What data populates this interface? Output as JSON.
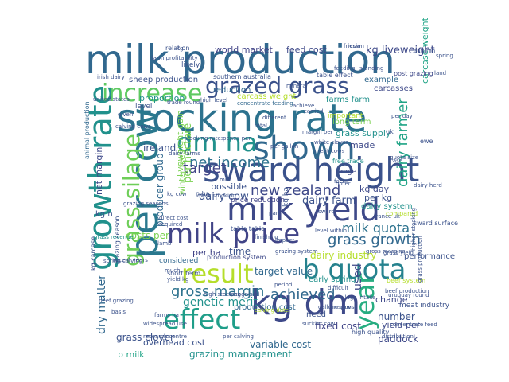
{
  "words": [
    {
      "text": "milk production",
      "color": "#31688e"
    },
    {
      "text": "stocking rate",
      "color": "#2c728e"
    },
    {
      "text": "sward height",
      "color": "#3b528b"
    },
    {
      "text": "milk yield",
      "color": "#3e4989"
    },
    {
      "text": "growth rate",
      "color": "#21918c"
    },
    {
      "text": "per cow",
      "color": "#2a788e"
    },
    {
      "text": "grazed grass",
      "color": "#3b528b"
    },
    {
      "text": "shown",
      "color": "#31688e"
    },
    {
      "text": "dm ha",
      "color": "#21918c"
    },
    {
      "text": "result",
      "color": "#b5de2b"
    },
    {
      "text": "milk price",
      "color": "#414487"
    },
    {
      "text": "kg dm",
      "color": "#3e4989"
    },
    {
      "text": "grass silage",
      "color": "#6ece58"
    },
    {
      "text": "increase",
      "color": "#5ec962"
    },
    {
      "text": "b quota",
      "color": "#26828e"
    },
    {
      "text": "effect",
      "color": "#1f9e89"
    },
    {
      "text": "year",
      "color": "#27ad81"
    },
    {
      "text": "net income",
      "color": "#2c728e"
    },
    {
      "text": "new zealand",
      "color": "#3e4989"
    },
    {
      "text": "grass growth",
      "color": "#31688e"
    },
    {
      "text": "gross margin",
      "color": "#2c728e"
    },
    {
      "text": "achieved",
      "color": "#31688e"
    },
    {
      "text": "milk quota",
      "color": "#2c728e"
    },
    {
      "text": "dairy farmer",
      "color": "#20a486"
    },
    {
      "text": "target",
      "color": "#414487"
    },
    {
      "text": "ireland",
      "color": "#3b528b"
    },
    {
      "text": "genetic merit",
      "color": "#21918c"
    },
    {
      "text": "dry matter",
      "color": "#31688e"
    },
    {
      "text": "kg liveweight",
      "color": "#3e4989"
    },
    {
      "text": "dairy cow",
      "color": "#3b528b"
    },
    {
      "text": "dairy farm",
      "color": "#3b528b"
    },
    {
      "text": "dairy industry",
      "color": "#b5de2b"
    },
    {
      "text": "used",
      "color": "#3e4989"
    },
    {
      "text": "per hectare",
      "color": "#7ad151"
    },
    {
      "text": "grass clover",
      "color": "#3b528b"
    },
    {
      "text": "grazing management",
      "color": "#21918c"
    },
    {
      "text": "variable cost",
      "color": "#31688e"
    },
    {
      "text": "fixed cost",
      "color": "#414487"
    },
    {
      "text": "paddock",
      "color": "#3e4989"
    },
    {
      "text": "number",
      "color": "#3b528b"
    },
    {
      "text": "overhead cost",
      "color": "#3b528b"
    },
    {
      "text": "b milk",
      "color": "#20a486"
    },
    {
      "text": "feed cost",
      "color": "#3e4989"
    },
    {
      "text": "world market",
      "color": "#414487"
    },
    {
      "text": "sheep production",
      "color": "#3b528b"
    },
    {
      "text": "proportion",
      "color": "#21918c"
    },
    {
      "text": "level",
      "color": "#3b528b"
    },
    {
      "text": "reduction",
      "color": "#31688e"
    },
    {
      "text": "carcass weight",
      "color": "#b5de2b"
    },
    {
      "text": "farms farm",
      "color": "#21918c"
    },
    {
      "text": "example",
      "color": "#31688e"
    },
    {
      "text": "carcasses",
      "color": "#3e4989"
    },
    {
      "text": "carcase weight",
      "color": "#20a486"
    },
    {
      "text": "post grazing",
      "color": "#3e4989"
    },
    {
      "text": "table effect",
      "color": "#3b528b"
    },
    {
      "text": "southern australia",
      "color": "#3b528b"
    },
    {
      "text": "concentrate feeding",
      "color": "#31688e"
    },
    {
      "text": "long term",
      "color": "#7ad151"
    },
    {
      "text": "grass supply",
      "color": "#21918c"
    },
    {
      "text": "made",
      "color": "#3e4989"
    },
    {
      "text": "possible",
      "color": "#3b528b"
    },
    {
      "text": "net margin",
      "color": "#3e4989"
    },
    {
      "text": "costs per",
      "color": "#7ad151"
    },
    {
      "text": "per ha",
      "color": "#414487"
    },
    {
      "text": "time",
      "color": "#3b528b"
    },
    {
      "text": "target value",
      "color": "#31688e"
    },
    {
      "text": "kg day",
      "color": "#3e4989"
    },
    {
      "text": "per kg",
      "color": "#3b528b"
    },
    {
      "text": "dairy system",
      "color": "#21918c"
    },
    {
      "text": "early spring",
      "color": "#21918c"
    },
    {
      "text": "change",
      "color": "#3e4989"
    },
    {
      "text": "yield per",
      "color": "#3e4989"
    },
    {
      "text": "beef system",
      "color": "#b5de2b"
    },
    {
      "text": "meat industry",
      "color": "#3b528b"
    },
    {
      "text": "production cost",
      "color": "#31688e"
    },
    {
      "text": "need",
      "color": "#3b528b"
    },
    {
      "text": "producer group",
      "color": "#31688e"
    },
    {
      "text": "liveweight gain",
      "color": "#7ad151"
    },
    {
      "text": "animal production",
      "color": "#31688e"
    },
    {
      "text": "kg n",
      "color": "#3b528b"
    },
    {
      "text": "relation",
      "color": "#3b528b"
    },
    {
      "text": "likely",
      "color": "#3b528b"
    },
    {
      "text": "irish dairy",
      "color": "#3b528b"
    },
    {
      "text": "important",
      "color": "#b5de2b"
    },
    {
      "text": "range",
      "color": "#3e4989"
    },
    {
      "text": "free trade",
      "color": "#21918c"
    },
    {
      "text": "compared",
      "color": "#b5de2b"
    },
    {
      "text": "sward surface",
      "color": "#3b528b"
    },
    {
      "text": "considered",
      "color": "#31688e"
    },
    {
      "text": "production system",
      "color": "#3e4989"
    },
    {
      "text": "performance",
      "color": "#3b528b"
    },
    {
      "text": "high quality",
      "color": "#3b528b"
    },
    {
      "text": "distribution",
      "color": "#3b528b"
    },
    {
      "text": "research centre",
      "color": "#3b528b"
    },
    {
      "text": "grazing season",
      "color": "#3b528b"
    },
    {
      "text": "grass revenue",
      "color": "#21918c"
    },
    {
      "text": "recent years",
      "color": "#3b528b"
    },
    {
      "text": "united states",
      "color": "#3b528b"
    },
    {
      "text": "white clover",
      "color": "#3b528b"
    },
    {
      "text": "per calving",
      "color": "#3b528b"
    },
    {
      "text": "winter feed",
      "color": "#7ad151"
    },
    {
      "text": "price reduction",
      "color": "#414487"
    },
    {
      "text": "high level",
      "color": "#3b528b"
    },
    {
      "text": "trade round",
      "color": "#3b528b"
    },
    {
      "text": "quota size",
      "color": "#3b528b"
    },
    {
      "text": "dairy herd",
      "color": "#3b528b"
    },
    {
      "text": "kg carcase",
      "color": "#3b528b"
    },
    {
      "text": "short term",
      "color": "#3b528b"
    },
    {
      "text": "calving date",
      "color": "#b5de2b"
    },
    {
      "text": "silage intake",
      "color": "#3b528b"
    },
    {
      "text": "beef production",
      "color": "#3b528b"
    },
    {
      "text": "concentrate feed",
      "color": "#3b528b"
    },
    {
      "text": "higher stocking",
      "color": "#3b528b"
    },
    {
      "text": "spring calving",
      "color": "#3b528b"
    },
    {
      "text": "france uk",
      "color": "#3b528b"
    },
    {
      "text": "kg cow",
      "color": "#3b528b"
    },
    {
      "text": "direct cost",
      "color": "#3b528b"
    },
    {
      "text": "required",
      "color": "#3b528b"
    },
    {
      "text": "pence per",
      "color": "#3b528b"
    },
    {
      "text": "per gallon",
      "color": "#3b528b"
    },
    {
      "text": "gallons cow",
      "color": "#3b528b"
    },
    {
      "text": "period",
      "color": "#3b528b"
    },
    {
      "text": "response",
      "color": "#3b528b"
    },
    {
      "text": "impact",
      "color": "#3b528b"
    },
    {
      "text": "difficult",
      "color": "#3b528b"
    },
    {
      "text": "basis",
      "color": "#3b528b"
    },
    {
      "text": "widespread use",
      "color": "#3b528b"
    },
    {
      "text": "given",
      "color": "#3b528b"
    },
    {
      "text": "grazing system",
      "color": "#3b528b"
    },
    {
      "text": "ewe",
      "color": "#3b528b"
    },
    {
      "text": "uk",
      "color": "#3b528b"
    },
    {
      "text": "lamb",
      "color": "#3b528b"
    },
    {
      "text": "n ha",
      "color": "#3b528b"
    },
    {
      "text": "sward",
      "color": "#3b528b"
    },
    {
      "text": "kg ha",
      "color": "#3b528b"
    },
    {
      "text": "mid",
      "color": "#3b528b"
    },
    {
      "text": "case",
      "color": "#3b528b"
    },
    {
      "text": "face",
      "color": "#3b528b"
    },
    {
      "text": "order",
      "color": "#3b528b"
    },
    {
      "text": "farm profitability",
      "color": "#3b528b"
    },
    {
      "text": "calving cows",
      "color": "#3b528b"
    },
    {
      "text": "suckler cow",
      "color": "#3b528b"
    },
    {
      "text": "merit cows",
      "color": "#3b528b"
    },
    {
      "text": "margin per",
      "color": "#3b528b"
    },
    {
      "text": "table table",
      "color": "#3b528b"
    },
    {
      "text": "grass yield",
      "color": "#3b528b"
    },
    {
      "text": "part",
      "color": "#3b528b"
    },
    {
      "text": "achieve",
      "color": "#3b528b"
    },
    {
      "text": "carried",
      "color": "#3b528b"
    },
    {
      "text": "friesian",
      "color": "#3b528b"
    },
    {
      "text": "high stocking",
      "color": "#3b528b"
    },
    {
      "text": "recognised",
      "color": "#3b528b"
    },
    {
      "text": "farms ha",
      "color": "#3b528b"
    },
    {
      "text": "lower stocking",
      "color": "#3b528b"
    },
    {
      "text": "much",
      "color": "#3b528b"
    },
    {
      "text": "yield kg",
      "color": "#3b528b"
    },
    {
      "text": "grazing seasons",
      "color": "#3b528b"
    },
    {
      "text": "gross margins",
      "color": "#3b528b"
    },
    {
      "text": "grass production",
      "color": "#3b528b"
    },
    {
      "text": "dairy farms",
      "color": "#3b528b"
    },
    {
      "text": "per day",
      "color": "#3b528b"
    },
    {
      "text": "uruguay round",
      "color": "#3b528b"
    },
    {
      "text": "beef grazing",
      "color": "#3b528b"
    },
    {
      "text": "finishing",
      "color": "#3b528b"
    },
    {
      "text": "level within",
      "color": "#3b528b"
    },
    {
      "text": "feeding",
      "color": "#3b528b"
    },
    {
      "text": "standing",
      "color": "#3b528b"
    },
    {
      "text": "different",
      "color": "#3b528b"
    },
    {
      "text": "total",
      "color": "#3b528b"
    },
    {
      "text": "stocking rates",
      "color": "#3b528b"
    },
    {
      "text": "mineral",
      "color": "#3b528b"
    },
    {
      "text": "kg",
      "color": "#3b528b"
    },
    {
      "text": "cow",
      "color": "#3b528b"
    },
    {
      "text": "spring",
      "color": "#3b528b"
    },
    {
      "text": "autumn",
      "color": "#3b528b"
    },
    {
      "text": "land",
      "color": "#3b528b"
    }
  ]
}
